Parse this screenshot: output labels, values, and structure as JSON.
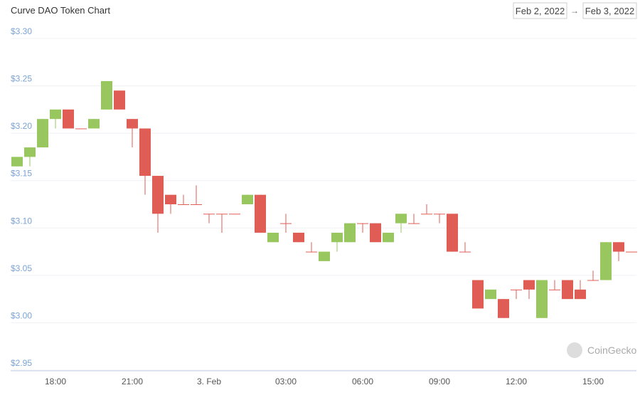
{
  "chart_data": {
    "type": "candlestick",
    "title": "Curve DAO Token Chart",
    "date_from": "Feb 2, 2022",
    "date_arrow": "→",
    "date_to": "Feb 3, 2022",
    "watermark": "CoinGecko",
    "categories": [
      null,
      null,
      null,
      "18:00",
      null,
      null,
      null,
      null,
      null,
      "21:00",
      null,
      null,
      null,
      null,
      null,
      "3. Feb",
      null,
      null,
      null,
      null,
      null,
      "03:00",
      null,
      null,
      null,
      null,
      null,
      "06:00",
      null,
      null,
      null,
      null,
      null,
      "09:00",
      null,
      null,
      null,
      null,
      null,
      "12:00",
      null,
      null,
      null,
      null,
      null,
      "15:00",
      null,
      null,
      null
    ],
    "open": [
      3.165,
      3.175,
      3.185,
      3.215,
      3.225,
      3.205,
      3.205,
      3.225,
      3.245,
      3.215,
      3.205,
      3.155,
      3.135,
      3.125,
      3.125,
      3.115,
      3.115,
      3.115,
      3.125,
      3.135,
      3.085,
      3.105,
      3.095,
      3.075,
      3.065,
      3.085,
      3.085,
      3.105,
      3.105,
      3.085,
      3.105,
      3.105,
      3.115,
      3.115,
      3.115,
      3.075,
      3.045,
      3.025,
      3.025,
      3.035,
      3.045,
      3.005,
      3.035,
      3.045,
      3.035,
      3.045,
      3.045,
      3.085,
      3.075
    ],
    "high": [
      3.175,
      3.185,
      3.215,
      3.225,
      3.225,
      3.205,
      3.215,
      3.255,
      3.245,
      3.215,
      3.205,
      3.155,
      3.135,
      3.135,
      3.145,
      3.115,
      3.115,
      3.115,
      3.135,
      3.135,
      3.095,
      3.115,
      3.095,
      3.085,
      3.075,
      3.095,
      3.105,
      3.105,
      3.105,
      3.095,
      3.115,
      3.115,
      3.125,
      3.115,
      3.115,
      3.085,
      3.045,
      3.035,
      3.025,
      3.035,
      3.045,
      3.045,
      3.045,
      3.045,
      3.045,
      3.055,
      3.085,
      3.085,
      3.075
    ],
    "low": [
      3.165,
      3.165,
      3.185,
      3.205,
      3.205,
      3.205,
      3.205,
      3.225,
      3.225,
      3.185,
      3.135,
      3.095,
      3.115,
      3.125,
      3.125,
      3.105,
      3.095,
      3.115,
      3.125,
      3.095,
      3.085,
      3.095,
      3.085,
      3.075,
      3.065,
      3.075,
      3.085,
      3.095,
      3.085,
      3.085,
      3.095,
      3.105,
      3.115,
      3.105,
      3.075,
      3.075,
      3.015,
      3.025,
      3.005,
      3.025,
      3.025,
      3.005,
      3.035,
      3.025,
      3.025,
      3.045,
      3.045,
      3.065,
      3.075
    ],
    "close": [
      3.175,
      3.185,
      3.215,
      3.225,
      3.205,
      3.205,
      3.215,
      3.255,
      3.225,
      3.205,
      3.155,
      3.115,
      3.125,
      3.125,
      3.125,
      3.115,
      3.115,
      3.115,
      3.135,
      3.095,
      3.095,
      3.105,
      3.085,
      3.075,
      3.075,
      3.095,
      3.105,
      3.105,
      3.085,
      3.095,
      3.115,
      3.105,
      3.115,
      3.115,
      3.075,
      3.075,
      3.015,
      3.035,
      3.005,
      3.035,
      3.035,
      3.045,
      3.035,
      3.025,
      3.025,
      3.045,
      3.085,
      3.075,
      3.075
    ],
    "up_color": "#97c75e",
    "down_color": "#e05d56",
    "ylim": [
      2.95,
      3.3
    ],
    "yticks": [
      {
        "value": 2.95,
        "label": "$2.95"
      },
      {
        "value": 3.0,
        "label": "$3.00"
      },
      {
        "value": 3.05,
        "label": "$3.05"
      },
      {
        "value": 3.1,
        "label": "$3.10"
      },
      {
        "value": 3.15,
        "label": "$3.15"
      },
      {
        "value": 3.2,
        "label": "$3.20"
      },
      {
        "value": 3.25,
        "label": "$3.25"
      },
      {
        "value": 3.3,
        "label": "$3.30"
      }
    ],
    "grid": true
  }
}
